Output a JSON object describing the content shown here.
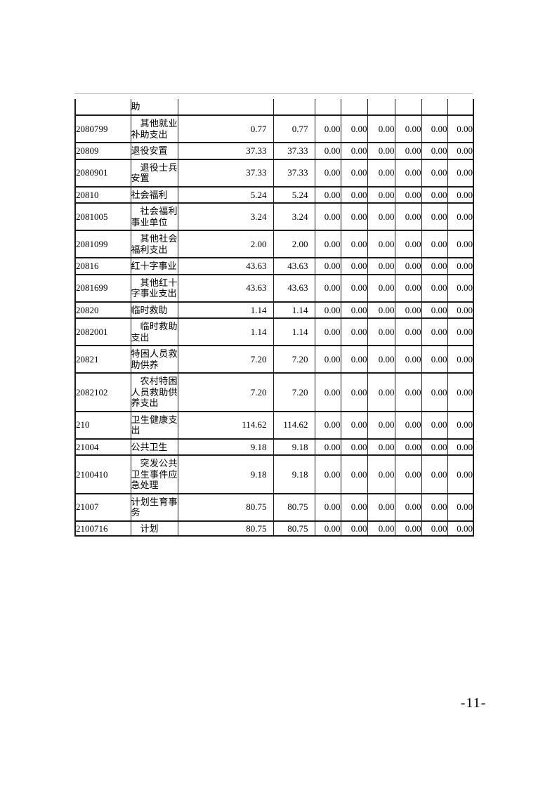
{
  "page": {
    "background": "#ffffff",
    "border_color": "#1c1c1c",
    "page_number": "-11-"
  },
  "table": {
    "rows": [
      {
        "code": "",
        "name": "助",
        "indent": false,
        "partial": "top",
        "values": [
          "",
          "",
          "",
          "",
          "",
          "",
          "",
          ""
        ]
      },
      {
        "code": "2080799",
        "name": "其他就业补助支出",
        "indent": true,
        "partial": "",
        "values": [
          "0.77",
          "0.77",
          "0.00",
          "0.00",
          "0.00",
          "0.00",
          "0.00",
          "0.00"
        ]
      },
      {
        "code": "20809",
        "name": "退役安置",
        "indent": false,
        "partial": "",
        "values": [
          "37.33",
          "37.33",
          "0.00",
          "0.00",
          "0.00",
          "0.00",
          "0.00",
          "0.00"
        ]
      },
      {
        "code": "2080901",
        "name": "退役士兵安置",
        "indent": true,
        "partial": "",
        "values": [
          "37.33",
          "37.33",
          "0.00",
          "0.00",
          "0.00",
          "0.00",
          "0.00",
          "0.00"
        ]
      },
      {
        "code": "20810",
        "name": "社会福利",
        "indent": false,
        "partial": "",
        "values": [
          "5.24",
          "5.24",
          "0.00",
          "0.00",
          "0.00",
          "0.00",
          "0.00",
          "0.00"
        ]
      },
      {
        "code": "2081005",
        "name": "社会福利事业单位",
        "indent": true,
        "partial": "",
        "values": [
          "3.24",
          "3.24",
          "0.00",
          "0.00",
          "0.00",
          "0.00",
          "0.00",
          "0.00"
        ]
      },
      {
        "code": "2081099",
        "name": "其他社会福利支出",
        "indent": true,
        "partial": "",
        "values": [
          "2.00",
          "2.00",
          "0.00",
          "0.00",
          "0.00",
          "0.00",
          "0.00",
          "0.00"
        ]
      },
      {
        "code": "20816",
        "name": "红十字事业",
        "indent": false,
        "partial": "",
        "values": [
          "43.63",
          "43.63",
          "0.00",
          "0.00",
          "0.00",
          "0.00",
          "0.00",
          "0.00"
        ]
      },
      {
        "code": "2081699",
        "name": "其他红十字事业支出",
        "indent": true,
        "partial": "",
        "values": [
          "43.63",
          "43.63",
          "0.00",
          "0.00",
          "0.00",
          "0.00",
          "0.00",
          "0.00"
        ]
      },
      {
        "code": "20820",
        "name": "临时救助",
        "indent": false,
        "partial": "",
        "values": [
          "1.14",
          "1.14",
          "0.00",
          "0.00",
          "0.00",
          "0.00",
          "0.00",
          "0.00"
        ]
      },
      {
        "code": "2082001",
        "name": "临时救助支出",
        "indent": true,
        "partial": "",
        "values": [
          "1.14",
          "1.14",
          "0.00",
          "0.00",
          "0.00",
          "0.00",
          "0.00",
          "0.00"
        ]
      },
      {
        "code": "20821",
        "name": "特困人员救助供养",
        "indent": false,
        "partial": "",
        "values": [
          "7.20",
          "7.20",
          "0.00",
          "0.00",
          "0.00",
          "0.00",
          "0.00",
          "0.00"
        ]
      },
      {
        "code": "2082102",
        "name": "农村特困人员救助供养支出",
        "indent": true,
        "partial": "",
        "values": [
          "7.20",
          "7.20",
          "0.00",
          "0.00",
          "0.00",
          "0.00",
          "0.00",
          "0.00"
        ]
      },
      {
        "code": "210",
        "name": "卫生健康支出",
        "indent": false,
        "partial": "",
        "values": [
          "114.62",
          "114.62",
          "0.00",
          "0.00",
          "0.00",
          "0.00",
          "0.00",
          "0.00"
        ]
      },
      {
        "code": "21004",
        "name": "公共卫生",
        "indent": false,
        "partial": "",
        "values": [
          "9.18",
          "9.18",
          "0.00",
          "0.00",
          "0.00",
          "0.00",
          "0.00",
          "0.00"
        ]
      },
      {
        "code": "2100410",
        "name": "突发公共卫生事件应急处理",
        "indent": true,
        "partial": "",
        "values": [
          "9.18",
          "9.18",
          "0.00",
          "0.00",
          "0.00",
          "0.00",
          "0.00",
          "0.00"
        ]
      },
      {
        "code": "21007",
        "name": "计划生育事务",
        "indent": false,
        "partial": "",
        "values": [
          "80.75",
          "80.75",
          "0.00",
          "0.00",
          "0.00",
          "0.00",
          "0.00",
          "0.00"
        ]
      },
      {
        "code": "2100716",
        "name": "计划",
        "indent": true,
        "partial": "bottom",
        "values": [
          "80.75",
          "80.75",
          "0.00",
          "0.00",
          "0.00",
          "0.00",
          "0.00",
          "0.00"
        ]
      }
    ]
  }
}
